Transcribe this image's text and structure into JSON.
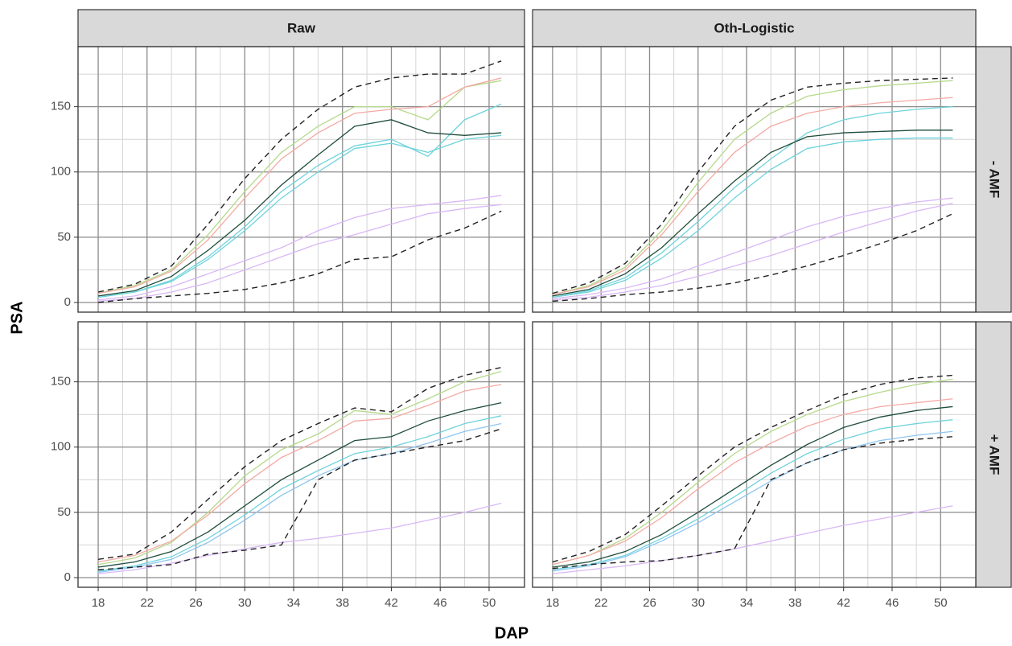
{
  "chart_data": {
    "type": "line",
    "x_label": "DAP",
    "y_label": "PSA",
    "columns": [
      "Raw",
      "Oth-Logistic"
    ],
    "rows": [
      "- AMF",
      "+ AMF"
    ],
    "x": [
      18,
      21,
      24,
      27,
      30,
      33,
      36,
      39,
      42,
      45,
      48,
      51
    ],
    "xlim": [
      16.35,
      52.9
    ],
    "xticks": [
      18,
      22,
      26,
      30,
      34,
      38,
      42,
      46,
      50
    ],
    "ylim": [
      -7.4,
      196
    ],
    "yticks": [
      0,
      50,
      100,
      150
    ],
    "grid": true,
    "minor_grid": true,
    "panels": [
      {
        "series": [
          {
            "color": "#222222",
            "dash": true,
            "values": [
              8,
              14,
              28,
              60,
              95,
              125,
              148,
              165,
              172,
              175,
              175,
              185
            ]
          },
          {
            "color": "#b5d98a",
            "dash": false,
            "values": [
              7,
              13,
              25,
              52,
              85,
              115,
              135,
              150,
              150,
              140,
              165,
              170
            ]
          },
          {
            "color": "#f4aaa4",
            "dash": false,
            "values": [
              7,
              12,
              24,
              48,
              80,
              110,
              130,
              145,
              148,
              150,
              165,
              172
            ]
          },
          {
            "color": "#6fd3db",
            "dash": false,
            "values": [
              4,
              8,
              17,
              35,
              58,
              85,
              105,
              120,
              125,
              112,
              140,
              152
            ]
          },
          {
            "color": "#6fd3db",
            "dash": false,
            "values": [
              4,
              8,
              16,
              33,
              55,
              80,
              100,
              118,
              122,
              115,
              125,
              128
            ]
          },
          {
            "color": "#d9b8f5",
            "dash": false,
            "values": [
              2,
              5,
              12,
              22,
              32,
              42,
              55,
              65,
              72,
              75,
              78,
              82
            ]
          },
          {
            "color": "#d9b8f5",
            "dash": false,
            "values": [
              1,
              3,
              8,
              15,
              25,
              35,
              45,
              52,
              60,
              68,
              72,
              75
            ]
          },
          {
            "color": "#222222",
            "dash": true,
            "values": [
              0,
              3,
              5,
              7,
              10,
              15,
              22,
              33,
              35,
              48,
              57,
              70
            ]
          },
          {
            "color": "#1f4d3a",
            "dash": false,
            "values": [
              5,
              9,
              20,
              40,
              63,
              90,
              113,
              135,
              140,
              130,
              128,
              130
            ]
          }
        ]
      },
      {
        "series": [
          {
            "color": "#222222",
            "dash": true,
            "values": [
              7,
              15,
              30,
              60,
              100,
              135,
              155,
              165,
              168,
              170,
              171,
              172
            ]
          },
          {
            "color": "#b5d98a",
            "dash": false,
            "values": [
              6,
              13,
              27,
              55,
              92,
              125,
              145,
              158,
              163,
              166,
              168,
              170
            ]
          },
          {
            "color": "#f4aaa4",
            "dash": false,
            "values": [
              6,
              12,
              25,
              52,
              85,
              115,
              135,
              145,
              150,
              153,
              155,
              157
            ]
          },
          {
            "color": "#6fd3db",
            "dash": false,
            "values": [
              4,
              9,
              19,
              38,
              62,
              88,
              110,
              130,
              140,
              145,
              148,
              150
            ]
          },
          {
            "color": "#6fd3db",
            "dash": false,
            "values": [
              4,
              8,
              17,
              34,
              55,
              80,
              102,
              118,
              123,
              125,
              126,
              126
            ]
          },
          {
            "color": "#d9b8f5",
            "dash": false,
            "values": [
              3,
              6,
              11,
              18,
              28,
              38,
              48,
              58,
              66,
              72,
              77,
              80
            ]
          },
          {
            "color": "#d9b8f5",
            "dash": false,
            "values": [
              2,
              4,
              8,
              13,
              20,
              28,
              36,
              45,
              54,
              62,
              70,
              76
            ]
          },
          {
            "color": "#222222",
            "dash": true,
            "values": [
              1,
              3,
              6,
              8,
              11,
              15,
              21,
              28,
              36,
              45,
              55,
              68
            ]
          },
          {
            "color": "#1f4d3a",
            "dash": false,
            "values": [
              5,
              10,
              22,
              42,
              68,
              93,
              115,
              127,
              130,
              131,
              132,
              132
            ]
          }
        ]
      },
      {
        "series": [
          {
            "color": "#222222",
            "dash": true,
            "values": [
              14,
              18,
              35,
              60,
              85,
              105,
              118,
              130,
              127,
              145,
              155,
              161
            ]
          },
          {
            "color": "#b5d98a",
            "dash": false,
            "values": [
              10,
              15,
              27,
              50,
              78,
              98,
              110,
              128,
              125,
              137,
              150,
              158
            ]
          },
          {
            "color": "#f4aaa4",
            "dash": false,
            "values": [
              12,
              17,
              28,
              48,
              72,
              92,
              105,
              120,
              122,
              132,
              143,
              148
            ]
          },
          {
            "color": "#6fd3db",
            "dash": false,
            "values": [
              5,
              9,
              16,
              30,
              48,
              68,
              82,
              95,
              100,
              108,
              118,
              124
            ]
          },
          {
            "color": "#8ec5f0",
            "dash": false,
            "values": [
              4,
              8,
              14,
              27,
              44,
              63,
              78,
              90,
              95,
              103,
              112,
              118
            ]
          },
          {
            "color": "#d9b8f5",
            "dash": false,
            "values": [
              3,
              6,
              11,
              17,
              22,
              27,
              30,
              34,
              38,
              44,
              50,
              57
            ]
          },
          {
            "color": "#222222",
            "dash": true,
            "values": [
              6,
              8,
              10,
              18,
              21,
              25,
              75,
              90,
              95,
              100,
              105,
              114
            ]
          },
          {
            "color": "#1f4d3a",
            "dash": false,
            "values": [
              8,
              12,
              20,
              35,
              55,
              75,
              90,
              105,
              108,
              120,
              128,
              134
            ]
          }
        ]
      },
      {
        "series": [
          {
            "color": "#222222",
            "dash": true,
            "values": [
              12,
              20,
              33,
              55,
              78,
              100,
              115,
              128,
              140,
              148,
              153,
              155
            ]
          },
          {
            "color": "#b5d98a",
            "dash": false,
            "values": [
              10,
              17,
              30,
              50,
              73,
              95,
              112,
              125,
              135,
              142,
              148,
              152
            ]
          },
          {
            "color": "#f4aaa4",
            "dash": false,
            "values": [
              10,
              17,
              28,
              46,
              68,
              88,
              103,
              116,
              125,
              131,
              134,
              137
            ]
          },
          {
            "color": "#6fd3db",
            "dash": false,
            "values": [
              6,
              10,
              17,
              30,
              45,
              62,
              80,
              95,
              106,
              114,
              118,
              121
            ]
          },
          {
            "color": "#8ec5f0",
            "dash": false,
            "values": [
              5,
              9,
              16,
              28,
              42,
              58,
              74,
              88,
              98,
              105,
              109,
              112
            ]
          },
          {
            "color": "#d9b8f5",
            "dash": false,
            "values": [
              3,
              6,
              9,
              13,
              17,
              22,
              28,
              34,
              40,
              45,
              50,
              55
            ]
          },
          {
            "color": "#222222",
            "dash": true,
            "values": [
              7,
              10,
              12,
              13,
              17,
              22,
              75,
              88,
              98,
              103,
              106,
              108
            ]
          },
          {
            "color": "#1f4d3a",
            "dash": false,
            "values": [
              8,
              12,
              20,
              33,
              50,
              68,
              86,
              102,
              115,
              123,
              128,
              131
            ]
          }
        ]
      }
    ]
  }
}
